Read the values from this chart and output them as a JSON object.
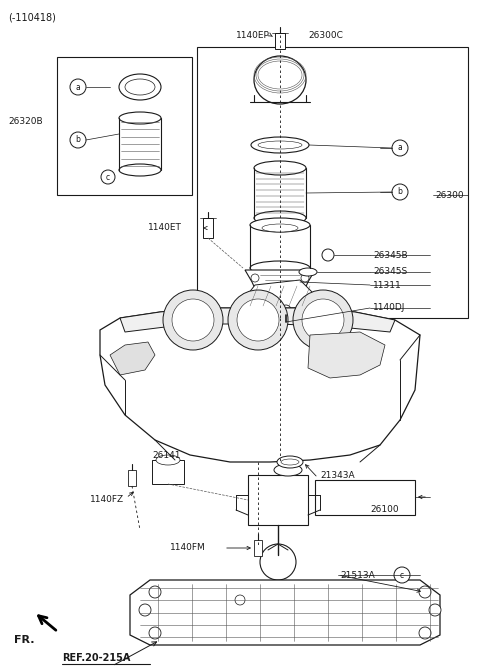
{
  "bg_color": "#ffffff",
  "line_color": "#1a1a1a",
  "gray_color": "#555555",
  "fig_width": 4.8,
  "fig_height": 6.71,
  "dpi": 100,
  "labels": {
    "top_left": "(-110418)",
    "part_26320B": "26320B",
    "part_1140EP": "1140EP",
    "part_26300C": "26300C",
    "part_26300": "26300",
    "part_1140ET": "1140ET",
    "part_26345B": "26345B",
    "part_26345S": "26345S",
    "part_11311": "11311",
    "part_1140DJ": "1140DJ",
    "part_26141": "26141",
    "part_1140FZ": "1140FZ",
    "part_21343A": "21343A",
    "part_26100": "26100",
    "part_1140FM": "1140FM",
    "part_21513A": "21513A",
    "fr": "FR.",
    "ref": "REF.20-215A"
  }
}
